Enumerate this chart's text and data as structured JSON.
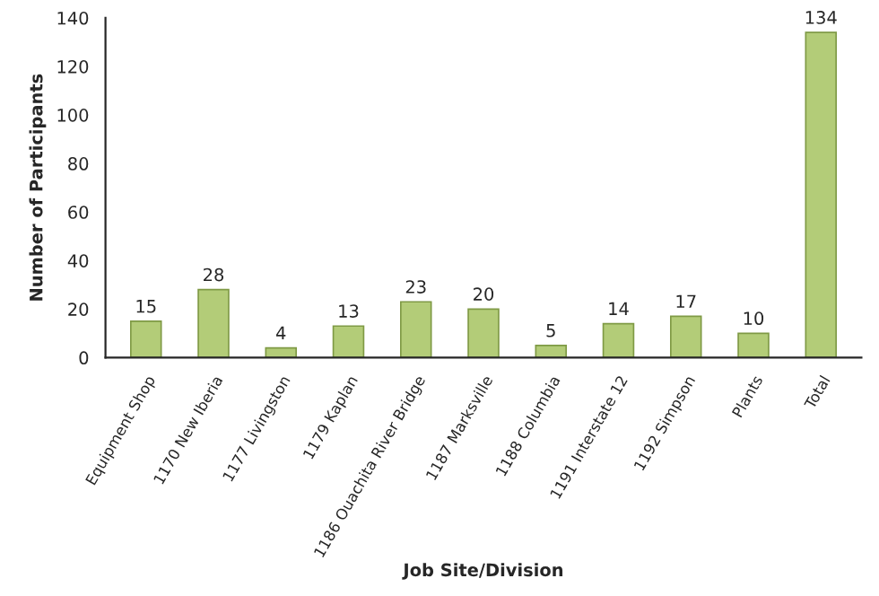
{
  "chart_data": {
    "type": "bar",
    "xlabel": "Job Site/Division",
    "ylabel": "Number of Participants",
    "categories": [
      "Equipment Shop",
      "1170 New Iberia",
      "1177 Livingston",
      "1179 Kaplan",
      "1186 Ouachita River Bridge",
      "1187 Marksville",
      "1188 Columbia",
      "1191 Interstate 12",
      "1192 Simpson",
      "Plants",
      "Total"
    ],
    "values": [
      15,
      28,
      4,
      13,
      23,
      20,
      5,
      14,
      17,
      10,
      134
    ],
    "color": "#b3cc78",
    "ylim": [
      0,
      140
    ],
    "yticks": [
      0,
      20,
      40,
      60,
      80,
      100,
      120,
      140
    ],
    "data_labels": true,
    "grid": false
  }
}
